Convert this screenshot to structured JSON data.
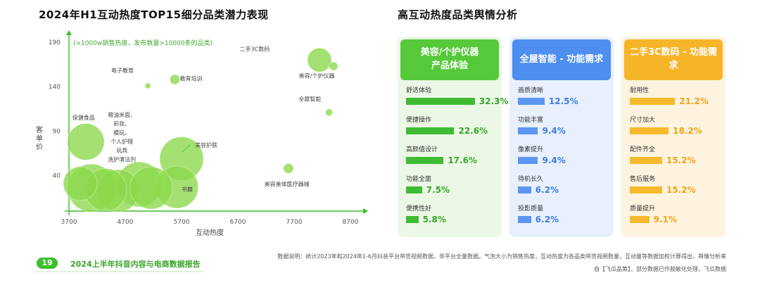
{
  "left_title": "2024年H1互动热度TOP15细分品类潜力表现",
  "right_title": "高互动热度品类舆情分析",
  "chart_data": {
    "type": "scatter",
    "title": "2024年H1互动热度TOP15细分品类潜力表现",
    "annotation": "(>1000w销售热度，发布数量>10000条的品类)",
    "xlabel": "互动热度",
    "ylabel": "客单价",
    "xlim": [
      3700,
      8700
    ],
    "ylim": [
      0,
      190
    ],
    "x_ticks": [
      3700,
      4700,
      5700,
      6700,
      7700,
      8700
    ],
    "y_ticks": [
      40,
      90,
      140,
      190
    ],
    "x_tick_labels": [
      "3700",
      "4700",
      "5700",
      "6700",
      "7700",
      "8700"
    ],
    "y_tick_labels": [
      "40",
      "90",
      "140",
      "190"
    ],
    "grid": false,
    "bubble_color": "#8bd84a",
    "points": [
      {
        "label": "二手3C数码",
        "x": 8150,
        "y": 170,
        "size": 17
      },
      {
        "label": "美容/个护仪器",
        "x": 8400,
        "y": 163,
        "size": 6
      },
      {
        "label": "全屋智能",
        "x": 8320,
        "y": 111,
        "size": 5
      },
      {
        "label": "电子教育",
        "x": 5100,
        "y": 141,
        "size": 4
      },
      {
        "label": "教育培训",
        "x": 5580,
        "y": 148,
        "size": 7
      },
      {
        "label": "保健食品",
        "x": 4000,
        "y": 78,
        "size": 26
      },
      {
        "label": "美容护肤",
        "x": 5700,
        "y": 59,
        "size": 31
      },
      {
        "label": "美容美体医疗器械",
        "x": 7600,
        "y": 48,
        "size": 7
      },
      {
        "label": "书籍",
        "x": 5620,
        "y": 27,
        "size": 30
      },
      {
        "label": "粮油米面",
        "x": 4100,
        "y": 26,
        "size": 34
      },
      {
        "label": "彩妆",
        "x": 4580,
        "y": 23,
        "size": 30
      },
      {
        "label": "模玩",
        "x": 4950,
        "y": 30,
        "size": 32
      },
      {
        "label": "个人护理",
        "x": 4350,
        "y": 24,
        "size": 30
      },
      {
        "label": "玩具",
        "x": 3900,
        "y": 31,
        "size": 24
      },
      {
        "label": "洗护清洁剂",
        "x": 5160,
        "y": 26,
        "size": 30
      }
    ],
    "point_annotations": [
      {
        "text": "二手3C数码",
        "x": 7000,
        "y": 180
      },
      {
        "text": "美容/个护仪器",
        "x": 8100,
        "y": 150
      },
      {
        "text": "全屋智能",
        "x": 7980,
        "y": 124
      },
      {
        "text": "电子教育",
        "x": 4650,
        "y": 156
      },
      {
        "text": "教育培训",
        "x": 5870,
        "y": 147
      },
      {
        "text": "保健食品",
        "x": 3960,
        "y": 103
      },
      {
        "text": "粮油米面、",
        "x": 4640,
        "y": 106
      },
      {
        "text": "彩妆、",
        "x": 4640,
        "y": 96
      },
      {
        "text": "模玩、",
        "x": 4640,
        "y": 86
      },
      {
        "text": "个人护理",
        "x": 4640,
        "y": 76
      },
      {
        "text": "玩具",
        "x": 4640,
        "y": 66
      },
      {
        "text": "洗护清洁剂",
        "x": 4640,
        "y": 56
      },
      {
        "text": "美容护肤",
        "x": 6140,
        "y": 72
      },
      {
        "text": "书籍",
        "x": 5800,
        "y": 22
      },
      {
        "text": "美容美体医疗器械",
        "x": 7570,
        "y": 28
      }
    ]
  },
  "panels": [
    {
      "header": "美容/个护仪器\n产品体验",
      "bg": "#ecf8e6",
      "head_color": "#55c93a",
      "bar_color": "#3fbb34",
      "value_color": "#34a62a",
      "metrics": [
        {
          "label": "舒适体验",
          "value": "32.3%",
          "pct": 32.3
        },
        {
          "label": "便捷操作",
          "value": "22.6%",
          "pct": 22.6
        },
        {
          "label": "高颜值设计",
          "value": "17.6%",
          "pct": 17.6
        },
        {
          "label": "功能全面",
          "value": "7.5%",
          "pct": 7.5
        },
        {
          "label": "便携性好",
          "value": "5.8%",
          "pct": 5.8
        }
      ]
    },
    {
      "header": "全屋智能 - 功能需求",
      "bg": "#e8f0fd",
      "head_color": "#4d8ef0",
      "bar_color": "#5b96f2",
      "value_color": "#3f7ee6",
      "metrics": [
        {
          "label": "画质清晰",
          "value": "12.5%",
          "pct": 12.5
        },
        {
          "label": "功能丰富",
          "value": "9.4%",
          "pct": 9.4
        },
        {
          "label": "像素提升",
          "value": "9.4%",
          "pct": 9.4
        },
        {
          "label": "待机长久",
          "value": "6.2%",
          "pct": 6.2
        },
        {
          "label": "投影质量",
          "value": "6.2%",
          "pct": 6.2
        }
      ]
    },
    {
      "header": "二手3C数码 - 功能需求",
      "bg": "#fdf3df",
      "head_color": "#f6b428",
      "bar_color": "#f7ba2d",
      "value_color": "#eea516",
      "metrics": [
        {
          "label": "耐用性",
          "value": "21.2%",
          "pct": 21.2
        },
        {
          "label": "尺寸加大",
          "value": "18.2%",
          "pct": 18.2
        },
        {
          "label": "配件齐全",
          "value": "15.2%",
          "pct": 15.2
        },
        {
          "label": "售后服务",
          "value": "15.2%",
          "pct": 15.2
        },
        {
          "label": "质量提升",
          "value": "9.1%",
          "pct": 9.1
        }
      ]
    }
  ],
  "footer": {
    "page_number": "19",
    "report_title": "2024上半年抖音内容与电商数据报告",
    "note_line1": "数据说明：统计2023年和2024年1-6月抖音平台带货视频数据，非平台全量数据。气泡大小为销售热度，互动热度为各品类带货视频数量，互动量等数据加权计算得出，舆情分析来",
    "note_line2": "自【飞瓜品策】，部分数据已作脱敏化处理，飞瓜数据"
  }
}
